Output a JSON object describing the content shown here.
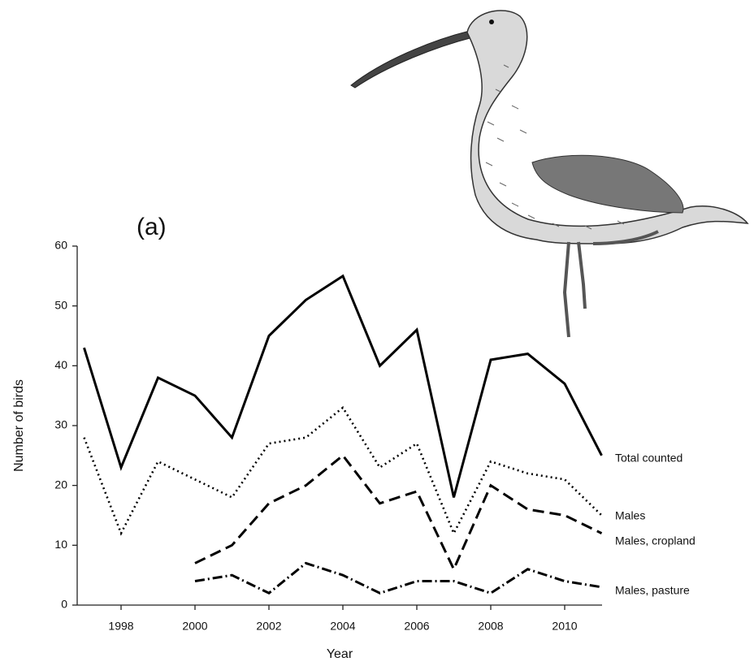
{
  "chart_data": {
    "type": "line",
    "panel_label": "(a)",
    "x_label": "Year",
    "y_label": "Number of birds",
    "x": [
      1997,
      1998,
      1999,
      2000,
      2001,
      2002,
      2003,
      2004,
      2005,
      2006,
      2007,
      2008,
      2009,
      2010,
      2011
    ],
    "xlim": [
      1997,
      2011
    ],
    "xticks": [
      1998,
      2000,
      2002,
      2004,
      2006,
      2008,
      2010
    ],
    "ylim": [
      0,
      60
    ],
    "yticks": [
      0,
      10,
      20,
      30,
      40,
      50,
      60
    ],
    "series": [
      {
        "name": "Total counted",
        "color": "#000000",
        "dash": "solid",
        "values": [
          43,
          23,
          38,
          35,
          28,
          45,
          51,
          55,
          40,
          46,
          18,
          41,
          42,
          37,
          25
        ]
      },
      {
        "name": "Males",
        "color": "#000000",
        "dash": "dotted",
        "values": [
          28,
          12,
          24,
          21,
          18,
          27,
          28,
          33,
          23,
          27,
          12,
          24,
          22,
          21,
          15
        ]
      },
      {
        "name": "Males, cropland",
        "color": "#000000",
        "dash": "dashed",
        "values": [
          null,
          null,
          null,
          7,
          10,
          17,
          20,
          25,
          17,
          19,
          6,
          20,
          16,
          15,
          12
        ]
      },
      {
        "name": "Males, pasture",
        "color": "#000000",
        "dash": "dashdot",
        "values": [
          null,
          null,
          null,
          4,
          5,
          2,
          7,
          5,
          2,
          4,
          4,
          2,
          6,
          4,
          3
        ]
      }
    ]
  }
}
